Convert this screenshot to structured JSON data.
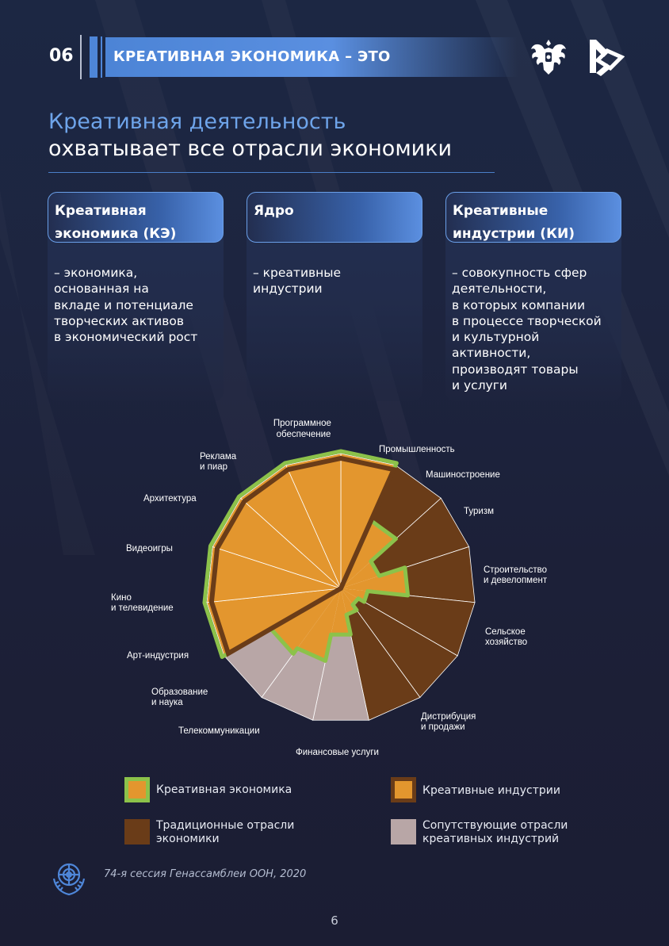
{
  "header": {
    "section_number": "06",
    "title": "КРЕАТИВНАЯ ЭКОНОМИКА – ЭТО"
  },
  "heading": {
    "line1": "Креативная деятельность",
    "line2": "охватывает все отрасли экономики"
  },
  "cards": [
    {
      "title_lines": [
        "Креативная",
        "экономика (КЭ)"
      ],
      "body_lines": [
        "– экономика,",
        "основанная на",
        "вкладе и потенциале",
        "творческих активов",
        "в экономический рост"
      ]
    },
    {
      "title_lines": [
        "Ядро"
      ],
      "body_lines": [
        "– креативные",
        "индустрии"
      ]
    },
    {
      "title_lines": [
        "Креативные",
        "индустрии (КИ)"
      ],
      "body_lines": [
        "– совокупность сфер",
        "деятельности,",
        "в которых компании",
        "в процессе творческой",
        "и культурной",
        "активности,",
        "производят товары",
        "и услуги"
      ]
    }
  ],
  "chart_data": {
    "type": "polar-area",
    "sectors": [
      {
        "label": "Программное обеспечение",
        "group": "creative",
        "ce_extent": 1.0
      },
      {
        "label": "Промышленность",
        "group": "traditional",
        "ce_extent": 0.55
      },
      {
        "label": "Машиностроение",
        "group": "traditional",
        "ce_extent": 0.3
      },
      {
        "label": "Туризм",
        "group": "traditional",
        "ce_extent": 0.5
      },
      {
        "label": "Строительство и девелопмент",
        "group": "traditional",
        "ce_extent": 0.2
      },
      {
        "label": "Сельское хозяйство",
        "group": "traditional",
        "ce_extent": 0.15
      },
      {
        "label": "Дистрибуция и продажи",
        "group": "traditional",
        "ce_extent": 0.2
      },
      {
        "label": "Финансовые услуги",
        "group": "supporting",
        "ce_extent": 0.35
      },
      {
        "label": "Телекоммуникации",
        "group": "supporting",
        "ce_extent": 0.55
      },
      {
        "label": "Образование и наука",
        "group": "supporting",
        "ce_extent": 0.6
      },
      {
        "label": "Арт-индустрия",
        "group": "creative",
        "ce_extent": 1.0
      },
      {
        "label": "Кино и телевидение",
        "group": "creative",
        "ce_extent": 1.0
      },
      {
        "label": "Видеоигры",
        "group": "creative",
        "ce_extent": 1.0
      },
      {
        "label": "Архитектура",
        "group": "creative",
        "ce_extent": 1.0
      },
      {
        "label": "Реклама и пиар",
        "group": "creative",
        "ce_extent": 1.0
      }
    ],
    "legend": [
      {
        "key": "ce",
        "label": "Креативная экономика"
      },
      {
        "key": "ci",
        "label": "Креативные индустрии"
      },
      {
        "key": "traditional",
        "label": "Традиционные  отрасли экономики"
      },
      {
        "key": "supporting",
        "label": "Сопутствующие  отрасли креативных индустрий"
      }
    ]
  },
  "chart_labels": {
    "software": [
      "Программное",
      "обеспечение"
    ],
    "industry": [
      "Промышленность"
    ],
    "machinery": [
      "Машиностроение"
    ],
    "tourism": [
      "Туризм"
    ],
    "construction": [
      "Строительство",
      "и девелопмент"
    ],
    "agriculture": [
      "Сельское",
      "хозяйство"
    ],
    "distribution": [
      "Дистрибуция",
      "и продажи"
    ],
    "finance": [
      "Финансовые услуги"
    ],
    "telecom": [
      "Телекоммуникации"
    ],
    "education": [
      "Образование",
      "и наука"
    ],
    "art": [
      "Арт-индустрия"
    ],
    "cinema": [
      "Кино",
      "и телевидение"
    ],
    "games": [
      "Видеоигры"
    ],
    "architecture": [
      "Архитектура"
    ],
    "advertising": [
      "Реклама",
      "и пиар"
    ]
  },
  "legend": {
    "ce": "Креативная экономика",
    "ci": "Креативные индустрии",
    "traditional_lines": [
      "Традиционные  отрасли",
      "экономики"
    ],
    "supporting_lines": [
      "Сопутствующие  отрасли",
      "креативных индустрий"
    ]
  },
  "colors": {
    "creative": "#e3962e",
    "traditional": "#6a3c18",
    "supporting": "#b8a6a6",
    "ce_outline": "#8cc24a",
    "ci_outline": "#6a3c18",
    "accent": "#4e86d8"
  },
  "footer": {
    "source": "74-я сессия Генассамблеи ООН, 2020",
    "page_number": "6"
  }
}
